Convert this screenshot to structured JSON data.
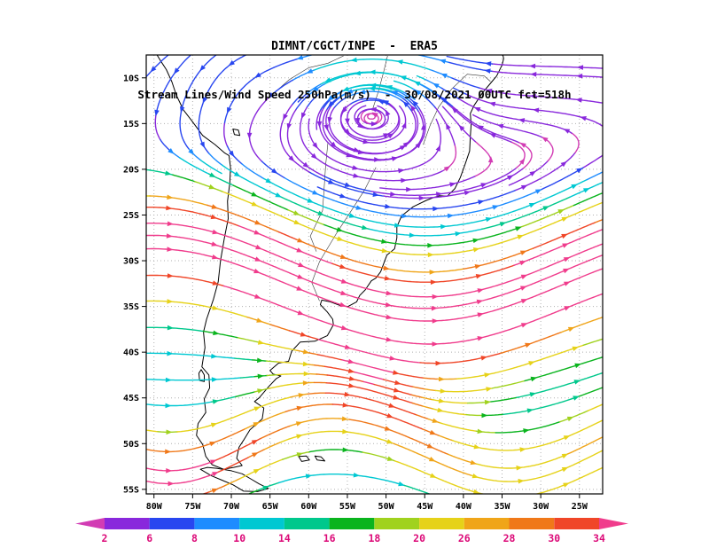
{
  "header": {
    "line1": "DIMNT/CGCT/INPE  -  ERA5",
    "line2": "Stream Lines/Wind Speed 250hPa(m/s)  -  30/08/2021 00UTC fct=518h"
  },
  "chart_data": {
    "type": "streamline-map",
    "title": "DIMNT/CGCT/INPE - ERA5",
    "subtitle": "Stream Lines/Wind Speed 250hPa(m/s) - 30/08/2021 00UTC fct=518h",
    "model": "ERA5",
    "variable": "Stream Lines / Wind Speed",
    "level": "250hPa",
    "units": "m/s",
    "valid_time": "30/08/2021 00UTC",
    "forecast_hour": "fct=518h",
    "lon_axis": {
      "range": [
        -81,
        -22
      ],
      "ticks": [
        {
          "value": -80,
          "label": "80W"
        },
        {
          "value": -75,
          "label": "75W"
        },
        {
          "value": -70,
          "label": "70W"
        },
        {
          "value": -65,
          "label": "65W"
        },
        {
          "value": -60,
          "label": "60W"
        },
        {
          "value": -55,
          "label": "55W"
        },
        {
          "value": -50,
          "label": "50W"
        },
        {
          "value": -45,
          "label": "45W"
        },
        {
          "value": -40,
          "label": "40W"
        },
        {
          "value": -35,
          "label": "35W"
        },
        {
          "value": -30,
          "label": "30W"
        },
        {
          "value": -25,
          "label": "25W"
        }
      ]
    },
    "lat_axis": {
      "range": [
        -55.5,
        -7.5
      ],
      "ticks": [
        {
          "value": -10,
          "label": "10S"
        },
        {
          "value": -15,
          "label": "15S"
        },
        {
          "value": -20,
          "label": "20S"
        },
        {
          "value": -25,
          "label": "25S"
        },
        {
          "value": -30,
          "label": "30S"
        },
        {
          "value": -35,
          "label": "35S"
        },
        {
          "value": -40,
          "label": "40S"
        },
        {
          "value": -45,
          "label": "45S"
        },
        {
          "value": -50,
          "label": "50S"
        },
        {
          "value": -55,
          "label": "55S"
        }
      ]
    },
    "colorbar": {
      "levels": [
        2,
        6,
        8,
        10,
        14,
        16,
        18,
        20,
        26,
        28,
        30,
        34
      ],
      "colors": [
        "#d23cb4",
        "#8928dc",
        "#2846f0",
        "#1e8cff",
        "#00c8d2",
        "#00c88c",
        "#0ab41e",
        "#a0d21e",
        "#e6d219",
        "#f0a519",
        "#f07819",
        "#f04628",
        "#f03c8c"
      ],
      "label_color": "#dc0a78"
    },
    "grid": {
      "on": true,
      "style": "dotted",
      "color": "#b0b0b0",
      "interval_deg": 5
    },
    "features": [
      "closed anticyclonic (counterclockwise) circulation near 52W 13S with weak winds (2-10 m/s)",
      "tropical easterlies north of 18S",
      "northwesterly inflow over the northwest corner",
      "broad subtropical westerly jet between 25S and 40S, core speeds above 30-34 m/s (pink)",
      "southern wave train near 50S with ridge near 56W and strong southwest inflow at 78W 52S"
    ],
    "flow_field": {
      "tropical_easterly": {
        "u": -6,
        "lat0": -19,
        "width": 3
      },
      "vortex": {
        "lon": -52,
        "lat": -13,
        "rx": 9,
        "ry": 5.5,
        "amp": -50
      },
      "nw_inflow": {
        "v": -7,
        "lon": -76,
        "lat": -13,
        "rx": 9,
        "ry": 7
      },
      "jet_main": {
        "umax": 36,
        "axis_lat": -32,
        "halfwidth": 7.5,
        "meander_amp": 4.5,
        "meander_wavelength": 70,
        "meander_phase": 97.5
      },
      "jet_south": {
        "umax": 18,
        "axis_lat": -50,
        "halfwidth": 5.5,
        "meander_amp": 4,
        "meander_wavelength": 44,
        "meander_phase": 67,
        "west_boost": 12,
        "west_lon": -78,
        "west_width": 10
      },
      "background_westerly": {
        "u": 6,
        "lat0": -26,
        "width": 4
      }
    }
  },
  "map": {
    "stroke": "#000000",
    "coastline": [
      [
        [
          -79.6,
          -7.5
        ],
        [
          -79.1,
          -8.2
        ],
        [
          -78.4,
          -9.1
        ],
        [
          -77.7,
          -10.4
        ],
        [
          -77.1,
          -11.9
        ],
        [
          -76.2,
          -13.5
        ],
        [
          -75.1,
          -14.7
        ],
        [
          -73.7,
          -16.3
        ],
        [
          -72.1,
          -17.3
        ],
        [
          -70.9,
          -18.2
        ],
        [
          -70.3,
          -18.5
        ],
        [
          -70.1,
          -19.8
        ],
        [
          -70.2,
          -21.5
        ],
        [
          -70.5,
          -23.5
        ],
        [
          -70.4,
          -25.4
        ],
        [
          -70.9,
          -27.5
        ],
        [
          -71.4,
          -30.0
        ],
        [
          -71.7,
          -32.3
        ],
        [
          -72.3,
          -34.2
        ],
        [
          -73.2,
          -36.4
        ],
        [
          -73.6,
          -37.8
        ],
        [
          -73.4,
          -39.5
        ],
        [
          -73.8,
          -41.6
        ],
        [
          -72.9,
          -42.5
        ],
        [
          -72.8,
          -43.9
        ],
        [
          -73.5,
          -45.1
        ],
        [
          -73.3,
          -46.6
        ],
        [
          -74.3,
          -47.8
        ],
        [
          -74.5,
          -49.1
        ],
        [
          -73.7,
          -50.1
        ],
        [
          -73.3,
          -51.4
        ],
        [
          -72.5,
          -52.3
        ],
        [
          -71.0,
          -52.8
        ],
        [
          -69.7,
          -52.6
        ],
        [
          -68.6,
          -52.4
        ],
        [
          -69.3,
          -51.6
        ],
        [
          -69.0,
          -50.4
        ],
        [
          -68.4,
          -49.6
        ],
        [
          -67.6,
          -48.5
        ],
        [
          -66.0,
          -47.3
        ],
        [
          -65.8,
          -46.1
        ],
        [
          -67.0,
          -45.4
        ],
        [
          -66.4,
          -45.0
        ],
        [
          -65.2,
          -43.8
        ],
        [
          -64.2,
          -42.9
        ],
        [
          -63.6,
          -42.6
        ],
        [
          -64.6,
          -42.4
        ],
        [
          -65.0,
          -42.0
        ],
        [
          -63.9,
          -41.2
        ],
        [
          -62.6,
          -41.0
        ],
        [
          -62.2,
          -39.9
        ],
        [
          -61.1,
          -38.9
        ],
        [
          -59.2,
          -38.8
        ],
        [
          -57.6,
          -38.2
        ],
        [
          -56.8,
          -37.0
        ],
        [
          -56.9,
          -36.4
        ],
        [
          -57.6,
          -35.6
        ],
        [
          -58.5,
          -34.8
        ],
        [
          -58.3,
          -34.3
        ],
        [
          -57.2,
          -34.5
        ],
        [
          -55.9,
          -34.9
        ],
        [
          -54.9,
          -35.0
        ],
        [
          -53.8,
          -34.5
        ],
        [
          -53.4,
          -33.8
        ],
        [
          -52.7,
          -33.2
        ],
        [
          -51.9,
          -32.2
        ],
        [
          -51.3,
          -31.9
        ],
        [
          -50.7,
          -31.2
        ],
        [
          -49.9,
          -29.4
        ],
        [
          -48.9,
          -28.7
        ],
        [
          -48.6,
          -27.5
        ],
        [
          -48.6,
          -26.3
        ],
        [
          -48.0,
          -25.1
        ],
        [
          -46.5,
          -24.1
        ],
        [
          -44.8,
          -23.4
        ],
        [
          -43.9,
          -23.1
        ],
        [
          -43.1,
          -22.9
        ],
        [
          -42.1,
          -22.95
        ],
        [
          -41.1,
          -22.1
        ],
        [
          -40.4,
          -20.9
        ],
        [
          -39.8,
          -19.5
        ],
        [
          -39.2,
          -18.0
        ],
        [
          -39.1,
          -16.4
        ],
        [
          -39.0,
          -15.1
        ],
        [
          -39.1,
          -13.9
        ],
        [
          -38.6,
          -13.0
        ],
        [
          -37.5,
          -11.6
        ],
        [
          -36.5,
          -10.6
        ],
        [
          -35.7,
          -9.8
        ],
        [
          -35.0,
          -8.6
        ],
        [
          -34.8,
          -7.9
        ],
        [
          -34.9,
          -7.5
        ]
      ]
    ],
    "islands": [
      [
        [
          -74.0,
          -52.8
        ],
        [
          -72.6,
          -53.5
        ],
        [
          -71.2,
          -54.0
        ],
        [
          -69.8,
          -54.5
        ],
        [
          -68.4,
          -55.2
        ],
        [
          -66.6,
          -55.25
        ],
        [
          -65.2,
          -54.9
        ],
        [
          -66.4,
          -54.4
        ],
        [
          -67.4,
          -53.9
        ],
        [
          -68.6,
          -53.3
        ],
        [
          -70.1,
          -52.95
        ],
        [
          -71.9,
          -52.7
        ],
        [
          -73.1,
          -52.6
        ]
      ],
      [
        [
          -73.9,
          -41.9
        ],
        [
          -73.5,
          -42.5
        ],
        [
          -73.5,
          -43.2
        ],
        [
          -74.1,
          -43.1
        ],
        [
          -74.2,
          -42.3
        ]
      ],
      [
        [
          -61.3,
          -51.4
        ],
        [
          -60.3,
          -51.35
        ],
        [
          -59.9,
          -51.8
        ],
        [
          -60.9,
          -51.95
        ]
      ],
      [
        [
          -59.2,
          -51.35
        ],
        [
          -58.4,
          -51.45
        ],
        [
          -57.9,
          -51.9
        ],
        [
          -58.9,
          -51.8
        ]
      ],
      [
        [
          -69.8,
          -15.6
        ],
        [
          -69.1,
          -15.7
        ],
        [
          -68.9,
          -16.3
        ],
        [
          -69.6,
          -16.2
        ]
      ]
    ],
    "rivers": [
      [
        [
          -51.3,
          -19.8
        ],
        [
          -52.8,
          -22.3
        ],
        [
          -54.4,
          -24.4
        ],
        [
          -56.4,
          -27.0
        ],
        [
          -58.6,
          -30.1
        ],
        [
          -59.6,
          -32.4
        ],
        [
          -58.6,
          -34.4
        ]
      ],
      [
        [
          -45.2,
          -17.3
        ],
        [
          -44.3,
          -15.2
        ],
        [
          -43.2,
          -13.2
        ],
        [
          -41.5,
          -11.2
        ],
        [
          -39.5,
          -9.6
        ],
        [
          -37.3,
          -9.8
        ],
        [
          -36.5,
          -10.4
        ]
      ],
      [
        [
          -55.5,
          -7.6
        ],
        [
          -57.5,
          -8.4
        ],
        [
          -60.0,
          -8.9
        ],
        [
          -62.5,
          -10.2
        ],
        [
          -64.8,
          -11.9
        ]
      ],
      [
        [
          -49.8,
          -7.6
        ],
        [
          -50.3,
          -9.3
        ],
        [
          -51.0,
          -11.5
        ],
        [
          -51.8,
          -13.6
        ]
      ],
      [
        [
          -57.5,
          -17.0
        ],
        [
          -57.8,
          -19.5
        ],
        [
          -58.0,
          -22.0
        ],
        [
          -58.2,
          -24.5
        ],
        [
          -59.8,
          -27.3
        ],
        [
          -59.0,
          -29.0
        ]
      ]
    ]
  }
}
